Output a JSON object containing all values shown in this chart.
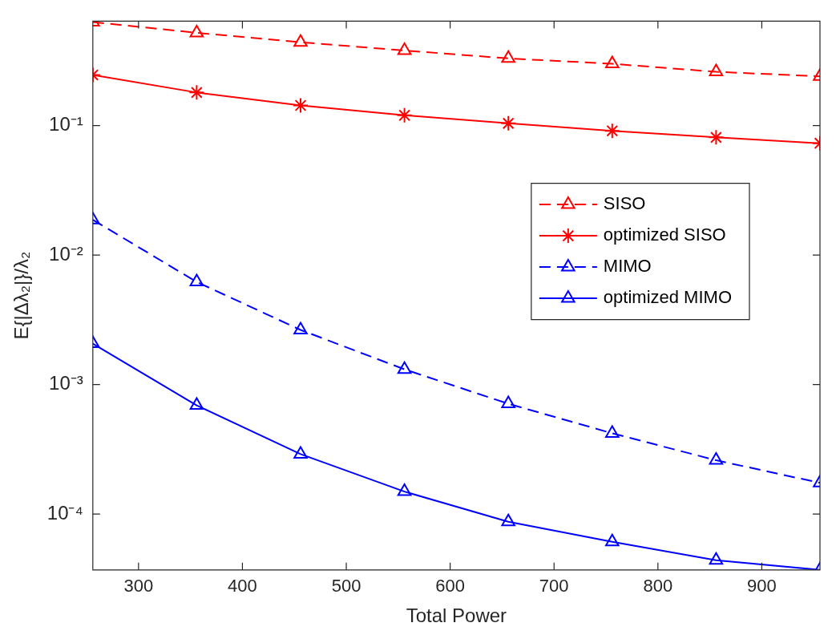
{
  "chart_data": {
    "type": "line",
    "xlabel": "Total Power",
    "ylabel": "E{|Δλ₂|}/λ₂",
    "log": "y",
    "grid": false,
    "legend": "right",
    "x": [
      256,
      356,
      456,
      556,
      656,
      756,
      856,
      956
    ],
    "xlim": [
      256,
      956
    ],
    "xticks": [
      300,
      400,
      500,
      600,
      700,
      800,
      900
    ],
    "ylim": [
      3.7e-05,
      0.64
    ],
    "yticks": [
      {
        "value": 0.0001,
        "label": "10⁻⁴"
      },
      {
        "value": 0.001,
        "label": "10⁻³"
      },
      {
        "value": 0.01,
        "label": "10⁻²"
      },
      {
        "value": 0.1,
        "label": "10⁻¹"
      }
    ],
    "series": [
      {
        "name": "SISO",
        "color": "#ff0000",
        "marker": "triangle",
        "line_style": "dashed",
        "values": [
          0.63,
          0.52,
          0.44,
          0.38,
          0.33,
          0.3,
          0.26,
          0.24
        ]
      },
      {
        "name": "optimized SISO",
        "color": "#ff0000",
        "marker": "cross",
        "line_style": "solid",
        "values": [
          0.246,
          0.18,
          0.143,
          0.12,
          0.104,
          0.091,
          0.081,
          0.073
        ]
      },
      {
        "name": "MIMO",
        "color": "#0000ff",
        "marker": "triangle",
        "line_style": "dashed",
        "values": [
          0.0187,
          0.0062,
          0.00264,
          0.00131,
          0.00071,
          0.00042,
          0.00026,
          0.000174
        ]
      },
      {
        "name": "optimized MIMO",
        "color": "#0000ff",
        "marker": "triangle",
        "line_style": "solid",
        "values": [
          0.00207,
          0.00069,
          0.00029,
          0.000149,
          8.7e-05,
          6.1e-05,
          4.4e-05,
          3.7e-05
        ]
      }
    ]
  }
}
